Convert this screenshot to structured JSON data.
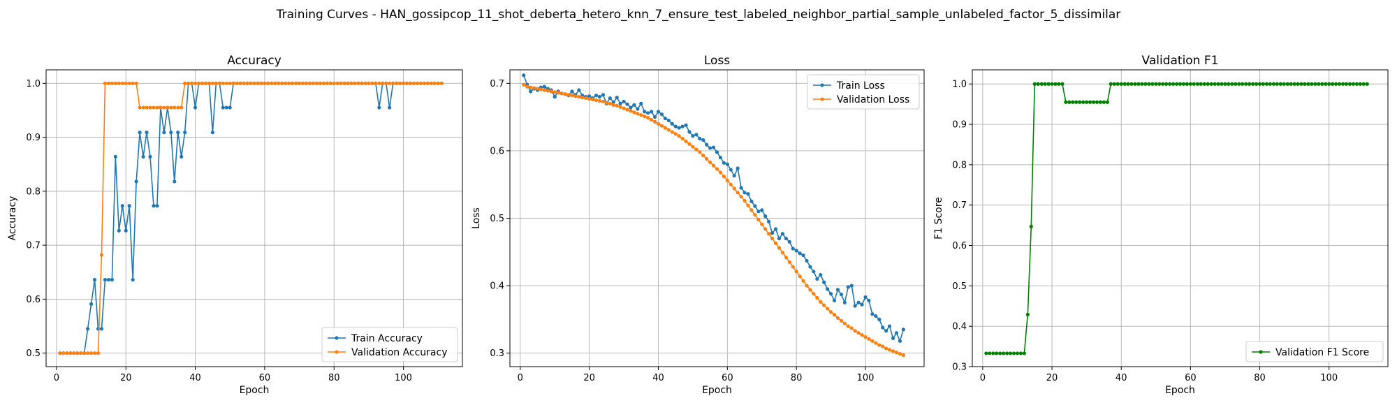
{
  "figure": {
    "suptitle": "Training Curves - HAN_gossipcop_11_shot_deberta_hetero_knn_7_ensure_test_labeled_neighbor_partial_sample_unlabeled_factor_5_dissimilar"
  },
  "chart_data": [
    {
      "type": "line",
      "title": "Accuracy",
      "xlabel": "Epoch",
      "ylabel": "Accuracy",
      "xlim": [
        -3,
        117
      ],
      "ylim": [
        0.475,
        1.025
      ],
      "xticks": [
        0,
        20,
        40,
        60,
        80,
        100
      ],
      "yticks": [
        0.5,
        0.6,
        0.7,
        0.8,
        0.9,
        1.0
      ],
      "ytick_labels": [
        "0.5",
        "0.6",
        "0.7",
        "0.8",
        "0.9",
        "1.0"
      ],
      "grid": true,
      "legend_position": "lower-right",
      "series": [
        {
          "name": "Train Accuracy",
          "color": "#1f77b4",
          "values": [
            0.5,
            0.5,
            0.5,
            0.5,
            0.5,
            0.5,
            0.5,
            0.5,
            0.545,
            0.591,
            0.636,
            0.545,
            0.545,
            0.636,
            0.636,
            0.636,
            0.864,
            0.727,
            0.773,
            0.727,
            0.773,
            0.636,
            0.818,
            0.909,
            0.864,
            0.909,
            0.864,
            0.773,
            0.773,
            0.955,
            0.909,
            0.955,
            0.909,
            0.818,
            0.909,
            0.864,
            0.909,
            1.0,
            1.0,
            0.955,
            1.0,
            1.0,
            1.0,
            1.0,
            0.909,
            1.0,
            1.0,
            0.955,
            0.955,
            0.955,
            1.0,
            1.0,
            1.0,
            1.0,
            1.0,
            1.0,
            1.0,
            1.0,
            1.0,
            1.0,
            1.0,
            1.0,
            1.0,
            1.0,
            1.0,
            1.0,
            1.0,
            1.0,
            1.0,
            1.0,
            1.0,
            1.0,
            1.0,
            1.0,
            1.0,
            1.0,
            1.0,
            1.0,
            1.0,
            1.0,
            1.0,
            1.0,
            1.0,
            1.0,
            1.0,
            1.0,
            1.0,
            1.0,
            1.0,
            1.0,
            1.0,
            1.0,
            0.955,
            1.0,
            1.0,
            0.955,
            1.0,
            1.0,
            1.0,
            1.0,
            1.0,
            1.0,
            1.0,
            1.0,
            1.0,
            1.0,
            1.0,
            1.0,
            1.0,
            1.0,
            1.0
          ]
        },
        {
          "name": "Validation Accuracy",
          "color": "#ff7f0e",
          "values": [
            0.5,
            0.5,
            0.5,
            0.5,
            0.5,
            0.5,
            0.5,
            0.5,
            0.5,
            0.5,
            0.5,
            0.5,
            0.682,
            1.0,
            1.0,
            1.0,
            1.0,
            1.0,
            1.0,
            1.0,
            1.0,
            1.0,
            1.0,
            0.955,
            0.955,
            0.955,
            0.955,
            0.955,
            0.955,
            0.955,
            0.955,
            0.955,
            0.955,
            0.955,
            0.955,
            0.955,
            1.0,
            1.0,
            1.0,
            1.0,
            1.0,
            1.0,
            1.0,
            1.0,
            1.0,
            1.0,
            1.0,
            1.0,
            1.0,
            1.0,
            1.0,
            1.0,
            1.0,
            1.0,
            1.0,
            1.0,
            1.0,
            1.0,
            1.0,
            1.0,
            1.0,
            1.0,
            1.0,
            1.0,
            1.0,
            1.0,
            1.0,
            1.0,
            1.0,
            1.0,
            1.0,
            1.0,
            1.0,
            1.0,
            1.0,
            1.0,
            1.0,
            1.0,
            1.0,
            1.0,
            1.0,
            1.0,
            1.0,
            1.0,
            1.0,
            1.0,
            1.0,
            1.0,
            1.0,
            1.0,
            1.0,
            1.0,
            1.0,
            1.0,
            1.0,
            1.0,
            1.0,
            1.0,
            1.0,
            1.0,
            1.0,
            1.0,
            1.0,
            1.0,
            1.0,
            1.0,
            1.0,
            1.0,
            1.0,
            1.0,
            1.0
          ]
        }
      ]
    },
    {
      "type": "line",
      "title": "Loss",
      "xlabel": "Epoch",
      "ylabel": "Loss",
      "xlim": [
        -3,
        117
      ],
      "ylim": [
        0.28,
        0.72
      ],
      "xticks": [
        0,
        20,
        40,
        60,
        80,
        100
      ],
      "yticks": [
        0.3,
        0.4,
        0.5,
        0.6,
        0.7
      ],
      "ytick_labels": [
        "0.3",
        "0.4",
        "0.5",
        "0.6",
        "0.7"
      ],
      "grid": true,
      "legend_position": "top-right",
      "series": [
        {
          "name": "Train Loss",
          "color": "#1f77b4",
          "values": [
            0.712,
            0.698,
            0.688,
            0.692,
            0.69,
            0.694,
            0.695,
            0.692,
            0.69,
            0.68,
            0.688,
            0.685,
            0.684,
            0.682,
            0.688,
            0.683,
            0.69,
            0.682,
            0.68,
            0.681,
            0.678,
            0.682,
            0.68,
            0.683,
            0.67,
            0.678,
            0.672,
            0.679,
            0.67,
            0.673,
            0.669,
            0.664,
            0.668,
            0.662,
            0.67,
            0.658,
            0.656,
            0.658,
            0.65,
            0.658,
            0.654,
            0.648,
            0.645,
            0.64,
            0.636,
            0.634,
            0.636,
            0.638,
            0.628,
            0.622,
            0.624,
            0.618,
            0.616,
            0.609,
            0.604,
            0.605,
            0.598,
            0.59,
            0.582,
            0.58,
            0.572,
            0.563,
            0.574,
            0.545,
            0.538,
            0.536,
            0.525,
            0.518,
            0.51,
            0.512,
            0.503,
            0.495,
            0.478,
            0.484,
            0.47,
            0.477,
            0.47,
            0.465,
            0.455,
            0.452,
            0.448,
            0.445,
            0.437,
            0.428,
            0.421,
            0.41,
            0.416,
            0.405,
            0.395,
            0.388,
            0.378,
            0.394,
            0.387,
            0.375,
            0.398,
            0.4,
            0.37,
            0.375,
            0.372,
            0.383,
            0.378,
            0.358,
            0.355,
            0.35,
            0.338,
            0.333,
            0.34,
            0.322,
            0.33,
            0.318,
            0.335
          ]
        },
        {
          "name": "Validation Loss",
          "color": "#ff7f0e",
          "values": [
            0.698,
            0.695,
            0.694,
            0.693,
            0.692,
            0.691,
            0.69,
            0.689,
            0.688,
            0.687,
            0.686,
            0.685,
            0.684,
            0.683,
            0.682,
            0.681,
            0.68,
            0.679,
            0.678,
            0.677,
            0.676,
            0.675,
            0.674,
            0.673,
            0.671,
            0.67,
            0.668,
            0.667,
            0.665,
            0.663,
            0.661,
            0.659,
            0.657,
            0.655,
            0.653,
            0.651,
            0.649,
            0.646,
            0.643,
            0.64,
            0.637,
            0.634,
            0.631,
            0.628,
            0.625,
            0.622,
            0.618,
            0.614,
            0.61,
            0.606,
            0.602,
            0.598,
            0.593,
            0.588,
            0.583,
            0.578,
            0.573,
            0.568,
            0.562,
            0.556,
            0.55,
            0.544,
            0.538,
            0.532,
            0.526,
            0.519,
            0.512,
            0.505,
            0.498,
            0.491,
            0.484,
            0.477,
            0.47,
            0.463,
            0.456,
            0.449,
            0.442,
            0.435,
            0.428,
            0.421,
            0.414,
            0.407,
            0.4,
            0.394,
            0.388,
            0.382,
            0.376,
            0.371,
            0.366,
            0.361,
            0.357,
            0.352,
            0.348,
            0.344,
            0.34,
            0.337,
            0.333,
            0.33,
            0.327,
            0.324,
            0.321,
            0.318,
            0.315,
            0.312,
            0.31,
            0.307,
            0.305,
            0.303,
            0.301,
            0.299,
            0.297
          ]
        }
      ]
    },
    {
      "type": "line",
      "title": "Validation F1",
      "xlabel": "Epoch",
      "ylabel": "F1 Score",
      "xlim": [
        -3,
        117
      ],
      "ylim": [
        0.3,
        1.035
      ],
      "xticks": [
        0,
        20,
        40,
        60,
        80,
        100
      ],
      "yticks": [
        0.3,
        0.4,
        0.5,
        0.6,
        0.7,
        0.8,
        0.9,
        1.0
      ],
      "ytick_labels": [
        "0.3",
        "0.4",
        "0.5",
        "0.6",
        "0.7",
        "0.8",
        "0.9",
        "1.0"
      ],
      "grid": true,
      "legend_position": "lower-right",
      "series": [
        {
          "name": "Validation F1 Score",
          "color": "#008000",
          "values": [
            0.333,
            0.333,
            0.333,
            0.333,
            0.333,
            0.333,
            0.333,
            0.333,
            0.333,
            0.333,
            0.333,
            0.333,
            0.429,
            0.647,
            1.0,
            1.0,
            1.0,
            1.0,
            1.0,
            1.0,
            1.0,
            1.0,
            1.0,
            0.955,
            0.955,
            0.955,
            0.955,
            0.955,
            0.955,
            0.955,
            0.955,
            0.955,
            0.955,
            0.955,
            0.955,
            0.955,
            1.0,
            1.0,
            1.0,
            1.0,
            1.0,
            1.0,
            1.0,
            1.0,
            1.0,
            1.0,
            1.0,
            1.0,
            1.0,
            1.0,
            1.0,
            1.0,
            1.0,
            1.0,
            1.0,
            1.0,
            1.0,
            1.0,
            1.0,
            1.0,
            1.0,
            1.0,
            1.0,
            1.0,
            1.0,
            1.0,
            1.0,
            1.0,
            1.0,
            1.0,
            1.0,
            1.0,
            1.0,
            1.0,
            1.0,
            1.0,
            1.0,
            1.0,
            1.0,
            1.0,
            1.0,
            1.0,
            1.0,
            1.0,
            1.0,
            1.0,
            1.0,
            1.0,
            1.0,
            1.0,
            1.0,
            1.0,
            1.0,
            1.0,
            1.0,
            1.0,
            1.0,
            1.0,
            1.0,
            1.0,
            1.0,
            1.0,
            1.0,
            1.0,
            1.0,
            1.0,
            1.0,
            1.0,
            1.0,
            1.0,
            1.0
          ]
        }
      ]
    }
  ]
}
